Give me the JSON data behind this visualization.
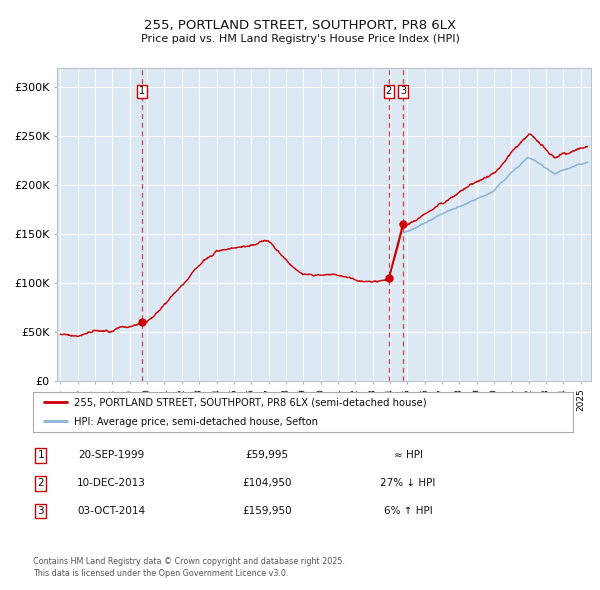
{
  "title": "255, PORTLAND STREET, SOUTHPORT, PR8 6LX",
  "subtitle": "Price paid vs. HM Land Registry's House Price Index (HPI)",
  "background_color": "#dce9f5",
  "fig_bg_color": "#ffffff",
  "grid_color": "#ffffff",
  "red_line_color": "#cc0000",
  "blue_line_color": "#8ab4d4",
  "dashed_line_color": "#cc4444",
  "ylim": [
    0,
    320000
  ],
  "xlim_start": 1994.8,
  "xlim_end": 2025.6,
  "ytick_labels": [
    "£0",
    "£50K",
    "£100K",
    "£150K",
    "£200K",
    "£250K",
    "£300K"
  ],
  "ytick_values": [
    0,
    50000,
    100000,
    150000,
    200000,
    250000,
    300000
  ],
  "sale1_date": 1999.72,
  "sale1_price": 59995,
  "sale1_label": "1",
  "sale2_date": 2013.94,
  "sale2_price": 104950,
  "sale2_label": "2",
  "sale3_date": 2014.75,
  "sale3_price": 159950,
  "sale3_label": "3",
  "legend_red": "255, PORTLAND STREET, SOUTHPORT, PR8 6LX (semi-detached house)",
  "legend_blue": "HPI: Average price, semi-detached house, Sefton",
  "table_rows": [
    {
      "num": "1",
      "date": "20-SEP-1999",
      "price": "£59,995",
      "hpi": "≈ HPI"
    },
    {
      "num": "2",
      "date": "10-DEC-2013",
      "price": "£104,950",
      "hpi": "27% ↓ HPI"
    },
    {
      "num": "3",
      "date": "03-OCT-2014",
      "price": "£159,950",
      "hpi": "6% ↑ HPI"
    }
  ],
  "footer": "Contains HM Land Registry data © Crown copyright and database right 2025.\nThis data is licensed under the Open Government Licence v3.0."
}
